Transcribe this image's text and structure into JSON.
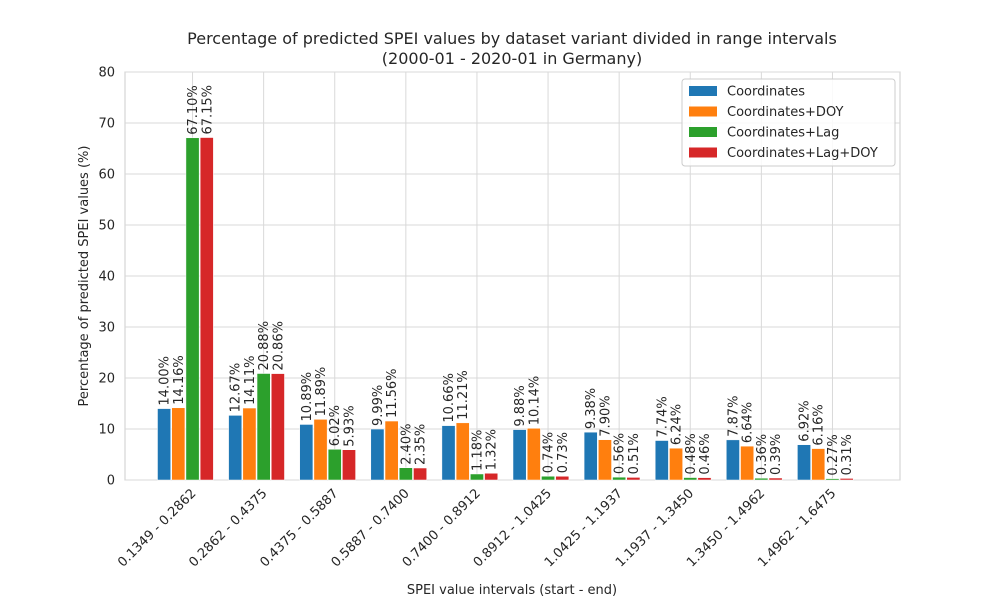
{
  "chart_data": {
    "type": "bar",
    "title": "Percentage of predicted SPEI values by dataset variant divided in range intervals",
    "subtitle": "(2000-01 - 2020-01 in Germany)",
    "xlabel": "SPEI value intervals (start - end)",
    "ylabel": "Percentage of predicted SPEI values (%)",
    "ylim": [
      0,
      80
    ],
    "yticks": [
      0,
      10,
      20,
      30,
      40,
      50,
      60,
      70,
      80
    ],
    "grid": true,
    "legend_position": "top-right",
    "categories": [
      "0.1349 - 0.2862",
      "0.2862 - 0.4375",
      "0.4375 - 0.5887",
      "0.5887 - 0.7400",
      "0.7400 - 0.8912",
      "0.8912 - 1.0425",
      "1.0425 - 1.1937",
      "1.1937 - 1.3450",
      "1.3450 - 1.4962",
      "1.4962 - 1.6475"
    ],
    "series": [
      {
        "name": "Coordinates",
        "color": "#1f77b4",
        "values": [
          14.0,
          12.67,
          10.89,
          9.99,
          10.66,
          9.88,
          9.38,
          7.74,
          7.87,
          6.92
        ],
        "labels": [
          "14.00%",
          "12.67%",
          "10.89%",
          "9.99%",
          "10.66%",
          "9.88%",
          "9.38%",
          "7.74%",
          "7.87%",
          "6.92%"
        ]
      },
      {
        "name": "Coordinates+DOY",
        "color": "#ff7f0e",
        "values": [
          14.16,
          14.11,
          11.89,
          11.56,
          11.21,
          10.14,
          7.9,
          6.24,
          6.64,
          6.16
        ],
        "labels": [
          "14.16%",
          "14.11%",
          "11.89%",
          "11.56%",
          "11.21%",
          "10.14%",
          "7.90%",
          "6.24%",
          "6.64%",
          "6.16%"
        ]
      },
      {
        "name": "Coordinates+Lag",
        "color": "#2ca02c",
        "values": [
          67.1,
          20.88,
          6.02,
          2.4,
          1.18,
          0.74,
          0.56,
          0.48,
          0.36,
          0.27
        ],
        "labels": [
          "67.10%",
          "20.88%",
          "6.02%",
          "2.40%",
          "1.18%",
          "0.74%",
          "0.56%",
          "0.48%",
          "0.36%",
          "0.27%"
        ]
      },
      {
        "name": "Coordinates+Lag+DOY",
        "color": "#d62728",
        "values": [
          67.15,
          20.86,
          5.93,
          2.35,
          1.32,
          0.73,
          0.51,
          0.46,
          0.39,
          0.31
        ],
        "labels": [
          "67.15%",
          "20.86%",
          "5.93%",
          "2.35%",
          "1.32%",
          "0.73%",
          "0.51%",
          "0.46%",
          "0.39%",
          "0.31%"
        ]
      }
    ]
  }
}
